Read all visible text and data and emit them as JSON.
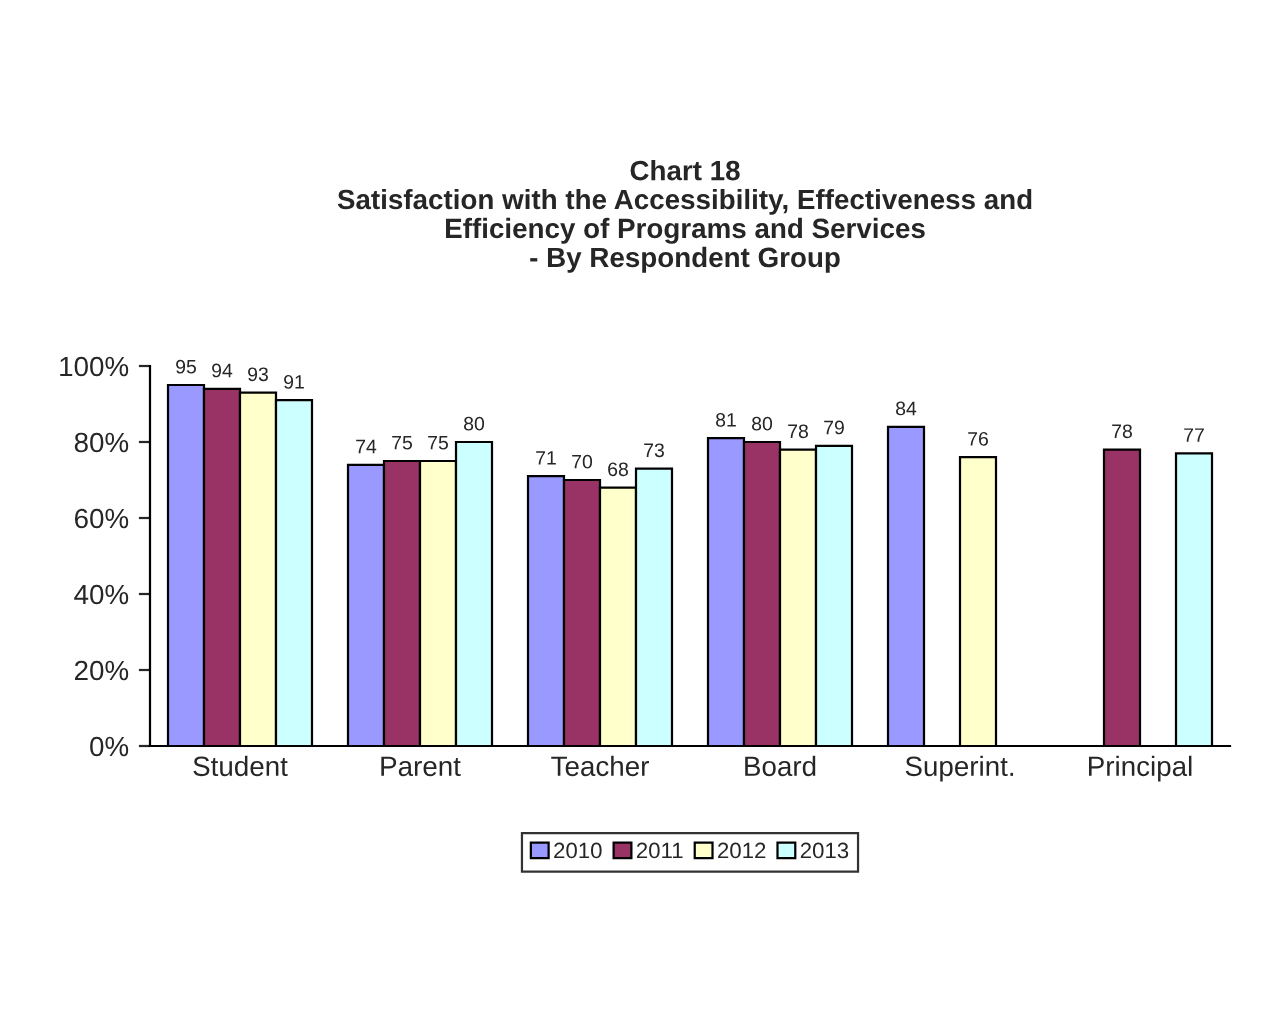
{
  "chart_data": {
    "type": "bar",
    "title": "Chart 18\nSatisfaction with the Accessibility, Effectiveness and\nEfficiency of Programs and Services\n- By Respondent Group",
    "categories": [
      "Student",
      "Parent",
      "Teacher",
      "Board",
      "Superint.",
      "Principal"
    ],
    "series": [
      {
        "name": "2010",
        "color": "#9999ff",
        "values": [
          95,
          74,
          71,
          81,
          84,
          null
        ]
      },
      {
        "name": "2011",
        "color": "#993366",
        "values": [
          94,
          75,
          70,
          80,
          null,
          78
        ]
      },
      {
        "name": "2012",
        "color": "#ffffcc",
        "values": [
          93,
          75,
          68,
          78,
          76,
          null
        ]
      },
      {
        "name": "2013",
        "color": "#ccffff",
        "values": [
          91,
          80,
          73,
          79,
          null,
          77
        ]
      }
    ],
    "ylim": [
      0,
      100
    ],
    "yticks": [
      {
        "value": 0,
        "label": "0%"
      },
      {
        "value": 20,
        "label": "20%"
      },
      {
        "value": 40,
        "label": "40%"
      },
      {
        "value": 60,
        "label": "60%"
      },
      {
        "value": 80,
        "label": "80%"
      },
      {
        "value": 100,
        "label": "100%"
      }
    ],
    "data_labels": true,
    "grid": false,
    "legend": "bottom"
  }
}
